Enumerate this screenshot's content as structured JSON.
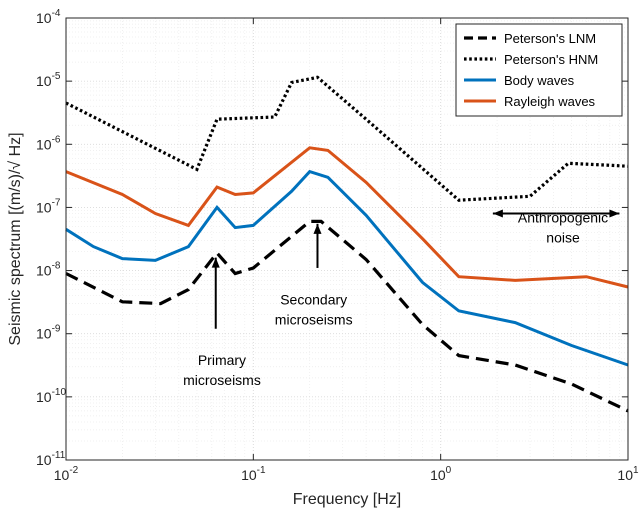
{
  "chart_data": {
    "type": "line",
    "xscale": "log",
    "yscale": "log",
    "xlim": [
      0.01,
      10
    ],
    "ylim": [
      1e-11,
      0.0001
    ],
    "grid": true,
    "minor_grid": true,
    "legend_position": "top-right",
    "xlabel": "Frequency [Hz]",
    "ylabel": "Seismic spectrum [(m/s)/√ Hz]",
    "x_ticks": [
      {
        "base": "10",
        "exp": "-2",
        "value": 0.01
      },
      {
        "base": "10",
        "exp": "-1",
        "value": 0.1
      },
      {
        "base": "10",
        "exp": "0",
        "value": 1
      },
      {
        "base": "10",
        "exp": "1",
        "value": 10
      }
    ],
    "y_ticks": [
      {
        "base": "10",
        "exp": "-11",
        "value": 1e-11
      },
      {
        "base": "10",
        "exp": "-10",
        "value": 1e-10
      },
      {
        "base": "10",
        "exp": "-9",
        "value": 1e-09
      },
      {
        "base": "10",
        "exp": "-8",
        "value": 1e-08
      },
      {
        "base": "10",
        "exp": "-7",
        "value": 1e-07
      },
      {
        "base": "10",
        "exp": "-6",
        "value": 1e-06
      },
      {
        "base": "10",
        "exp": "-5",
        "value": 1e-05
      },
      {
        "base": "10",
        "exp": "-4",
        "value": 0.0001
      }
    ],
    "series": [
      {
        "name": "Peterson's LNM",
        "color": "#000000",
        "style": "dashed",
        "points": [
          [
            0.01,
            9e-09
          ],
          [
            0.02,
            3.2e-09
          ],
          [
            0.032,
            3e-09
          ],
          [
            0.045,
            5e-09
          ],
          [
            0.064,
            1.9e-08
          ],
          [
            0.08,
            9e-09
          ],
          [
            0.1,
            1.1e-08
          ],
          [
            0.2,
            6e-08
          ],
          [
            0.23,
            6e-08
          ],
          [
            0.4,
            1.5e-08
          ],
          [
            0.8,
            1.4e-09
          ],
          [
            1.25,
            4.5e-10
          ],
          [
            2.5,
            3.2e-10
          ],
          [
            5,
            1.6e-10
          ],
          [
            10,
            6e-11
          ]
        ]
      },
      {
        "name": "Peterson's HNM",
        "color": "#000000",
        "style": "dotted",
        "points": [
          [
            0.01,
            4.5e-06
          ],
          [
            0.05,
            4e-07
          ],
          [
            0.064,
            2.5e-06
          ],
          [
            0.13,
            2.7e-06
          ],
          [
            0.16,
            9.5e-06
          ],
          [
            0.22,
            1.15e-05
          ],
          [
            0.4,
            2.5e-06
          ],
          [
            1.25,
            1.3e-07
          ],
          [
            3,
            1.5e-07
          ],
          [
            4.8,
            5e-07
          ],
          [
            10,
            4.5e-07
          ]
        ]
      },
      {
        "name": "Body waves",
        "color": "#0072BD",
        "style": "solid",
        "points": [
          [
            0.01,
            4.5e-08
          ],
          [
            0.014,
            2.4e-08
          ],
          [
            0.02,
            1.55e-08
          ],
          [
            0.03,
            1.45e-08
          ],
          [
            0.045,
            2.4e-08
          ],
          [
            0.064,
            1e-07
          ],
          [
            0.08,
            4.8e-08
          ],
          [
            0.1,
            5.2e-08
          ],
          [
            0.16,
            1.8e-07
          ],
          [
            0.2,
            3.7e-07
          ],
          [
            0.25,
            3e-07
          ],
          [
            0.4,
            7.5e-08
          ],
          [
            0.8,
            6.5e-09
          ],
          [
            1.25,
            2.3e-09
          ],
          [
            2.5,
            1.5e-09
          ],
          [
            5,
            6.5e-10
          ],
          [
            10,
            3.2e-10
          ]
        ]
      },
      {
        "name": "Rayleigh waves",
        "color": "#D95319",
        "style": "solid",
        "points": [
          [
            0.01,
            3.7e-07
          ],
          [
            0.02,
            1.6e-07
          ],
          [
            0.03,
            8e-08
          ],
          [
            0.045,
            5.2e-08
          ],
          [
            0.064,
            2.1e-07
          ],
          [
            0.08,
            1.6e-07
          ],
          [
            0.1,
            1.7e-07
          ],
          [
            0.2,
            8.8e-07
          ],
          [
            0.25,
            8e-07
          ],
          [
            0.4,
            2.5e-07
          ],
          [
            0.8,
            3.2e-08
          ],
          [
            1.25,
            8e-09
          ],
          [
            2.5,
            7e-09
          ],
          [
            6,
            8e-09
          ],
          [
            10,
            5.5e-09
          ]
        ]
      }
    ],
    "annotations": [
      {
        "lines": [
          "Primary",
          "microseisms"
        ],
        "text_x": 0.068,
        "text_y": 2.2e-10,
        "arrow_from": [
          0.063,
          1.2e-09
        ],
        "arrow_to": [
          0.063,
          1.6e-08
        ]
      },
      {
        "lines": [
          "Secondary",
          "microseisms"
        ],
        "text_x": 0.21,
        "text_y": 2e-09,
        "arrow_from": [
          0.22,
          1.1e-08
        ],
        "arrow_to": [
          0.22,
          5.5e-08
        ]
      },
      {
        "lines": [
          "Anthropogenic",
          "noise"
        ],
        "text_x": 4.5,
        "text_y": 4e-08,
        "double_arrow": [
          [
            1.9,
            8e-08
          ],
          [
            9,
            8e-08
          ]
        ]
      }
    ]
  }
}
